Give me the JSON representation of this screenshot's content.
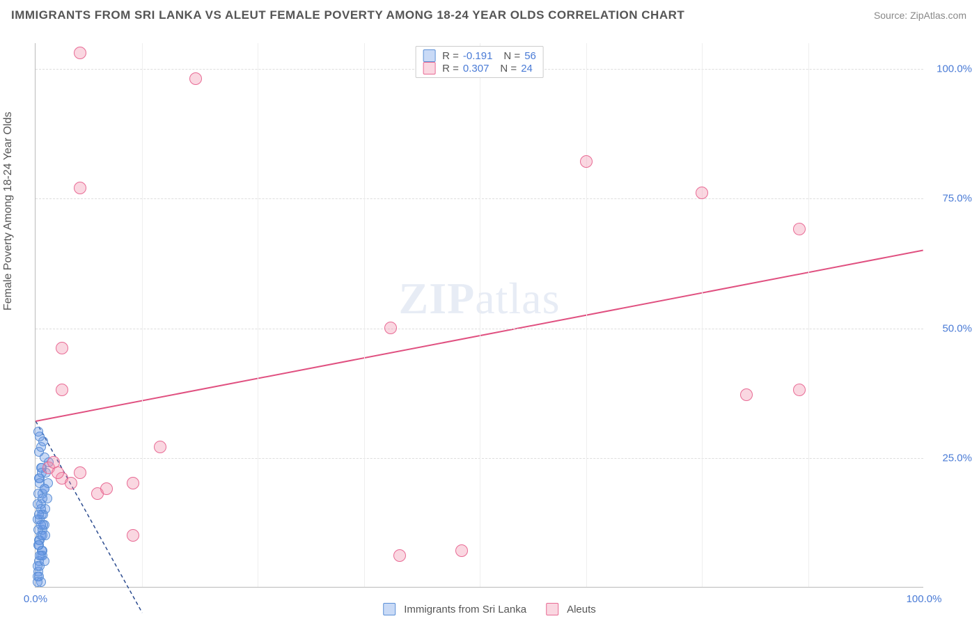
{
  "title": "IMMIGRANTS FROM SRI LANKA VS ALEUT FEMALE POVERTY AMONG 18-24 YEAR OLDS CORRELATION CHART",
  "source": "Source: ZipAtlas.com",
  "watermark": "ZIPatlas",
  "ylabel": "Female Poverty Among 18-24 Year Olds",
  "xlim": [
    0,
    100
  ],
  "ylim": [
    0,
    105
  ],
  "yticks": [
    {
      "v": 25,
      "label": "25.0%"
    },
    {
      "v": 50,
      "label": "50.0%"
    },
    {
      "v": 75,
      "label": "75.0%"
    },
    {
      "v": 100,
      "label": "100.0%"
    }
  ],
  "xticks": [
    {
      "v": 0,
      "label": "0.0%"
    },
    {
      "v": 100,
      "label": "100.0%"
    }
  ],
  "xgrid_minor": [
    12,
    25,
    37,
    50,
    62,
    75,
    87
  ],
  "series": [
    {
      "name": "Immigrants from Sri Lanka",
      "fill": "rgba(100,150,230,0.35)",
      "stroke": "#5b8fd6",
      "marker_size": 14,
      "line": {
        "color": "#2b4b8f",
        "dash": "5,4",
        "width": 1.5,
        "x1": 0,
        "y1": 32,
        "x2": 12,
        "y2": -5
      },
      "stats": {
        "R": "-0.191",
        "N": "56"
      },
      "points": [
        [
          0.2,
          2
        ],
        [
          0.3,
          3
        ],
        [
          0.5,
          4
        ],
        [
          0.4,
          5
        ],
        [
          0.6,
          6
        ],
        [
          0.8,
          7
        ],
        [
          0.4,
          9
        ],
        [
          0.6,
          10
        ],
        [
          0.8,
          11
        ],
        [
          1.0,
          12
        ],
        [
          0.5,
          13
        ],
        [
          0.9,
          14
        ],
        [
          1.1,
          15
        ],
        [
          0.6,
          16
        ],
        [
          1.3,
          17
        ],
        [
          0.8,
          18
        ],
        [
          1.0,
          19
        ],
        [
          1.4,
          20
        ],
        [
          0.5,
          21
        ],
        [
          1.2,
          22
        ],
        [
          0.7,
          23
        ],
        [
          1.5,
          24
        ],
        [
          1.0,
          25
        ],
        [
          0.4,
          26
        ],
        [
          0.6,
          27
        ],
        [
          0.9,
          28
        ],
        [
          0.5,
          29
        ],
        [
          0.3,
          30
        ],
        [
          0.7,
          14
        ],
        [
          0.9,
          12
        ],
        [
          1.1,
          10
        ],
        [
          0.4,
          8
        ],
        [
          0.8,
          6
        ],
        [
          1.0,
          5
        ],
        [
          0.3,
          11
        ],
        [
          0.5,
          9
        ],
        [
          0.7,
          7
        ],
        [
          0.2,
          13
        ],
        [
          0.6,
          15
        ],
        [
          0.8,
          17
        ],
        [
          1.0,
          19
        ],
        [
          0.4,
          21
        ],
        [
          0.6,
          23
        ],
        [
          0.3,
          18
        ],
        [
          0.5,
          20
        ],
        [
          0.7,
          22
        ],
        [
          0.2,
          16
        ],
        [
          0.4,
          14
        ],
        [
          0.6,
          12
        ],
        [
          0.8,
          10
        ],
        [
          0.3,
          8
        ],
        [
          0.5,
          6
        ],
        [
          0.2,
          4
        ],
        [
          0.4,
          2
        ],
        [
          0.6,
          1
        ],
        [
          0.2,
          1
        ]
      ]
    },
    {
      "name": "Aleuts",
      "fill": "rgba(240,140,170,0.35)",
      "stroke": "#e86a94",
      "marker_size": 18,
      "line": {
        "color": "#e05080",
        "dash": "",
        "width": 2,
        "x1": 0,
        "y1": 32,
        "x2": 100,
        "y2": 65
      },
      "stats": {
        "R": "0.307",
        "N": "24"
      },
      "points": [
        [
          5,
          103
        ],
        [
          18,
          98
        ],
        [
          5,
          77
        ],
        [
          3,
          46
        ],
        [
          3,
          38
        ],
        [
          1.5,
          23
        ],
        [
          2,
          24
        ],
        [
          3,
          21
        ],
        [
          5,
          22
        ],
        [
          7,
          18
        ],
        [
          11,
          20
        ],
        [
          14,
          27
        ],
        [
          8,
          19
        ],
        [
          4,
          20
        ],
        [
          2.5,
          22
        ],
        [
          11,
          10
        ],
        [
          41,
          6
        ],
        [
          48,
          7
        ],
        [
          40,
          50
        ],
        [
          62,
          82
        ],
        [
          75,
          76
        ],
        [
          86,
          69
        ],
        [
          86,
          38
        ],
        [
          80,
          37
        ]
      ]
    }
  ],
  "legend_bottom": [
    {
      "label": "Immigrants from Sri Lanka",
      "swatch_fill": "rgba(100,150,230,0.35)",
      "swatch_stroke": "#5b8fd6"
    },
    {
      "label": "Aleuts",
      "swatch_fill": "rgba(240,140,170,0.35)",
      "swatch_stroke": "#e86a94"
    }
  ]
}
